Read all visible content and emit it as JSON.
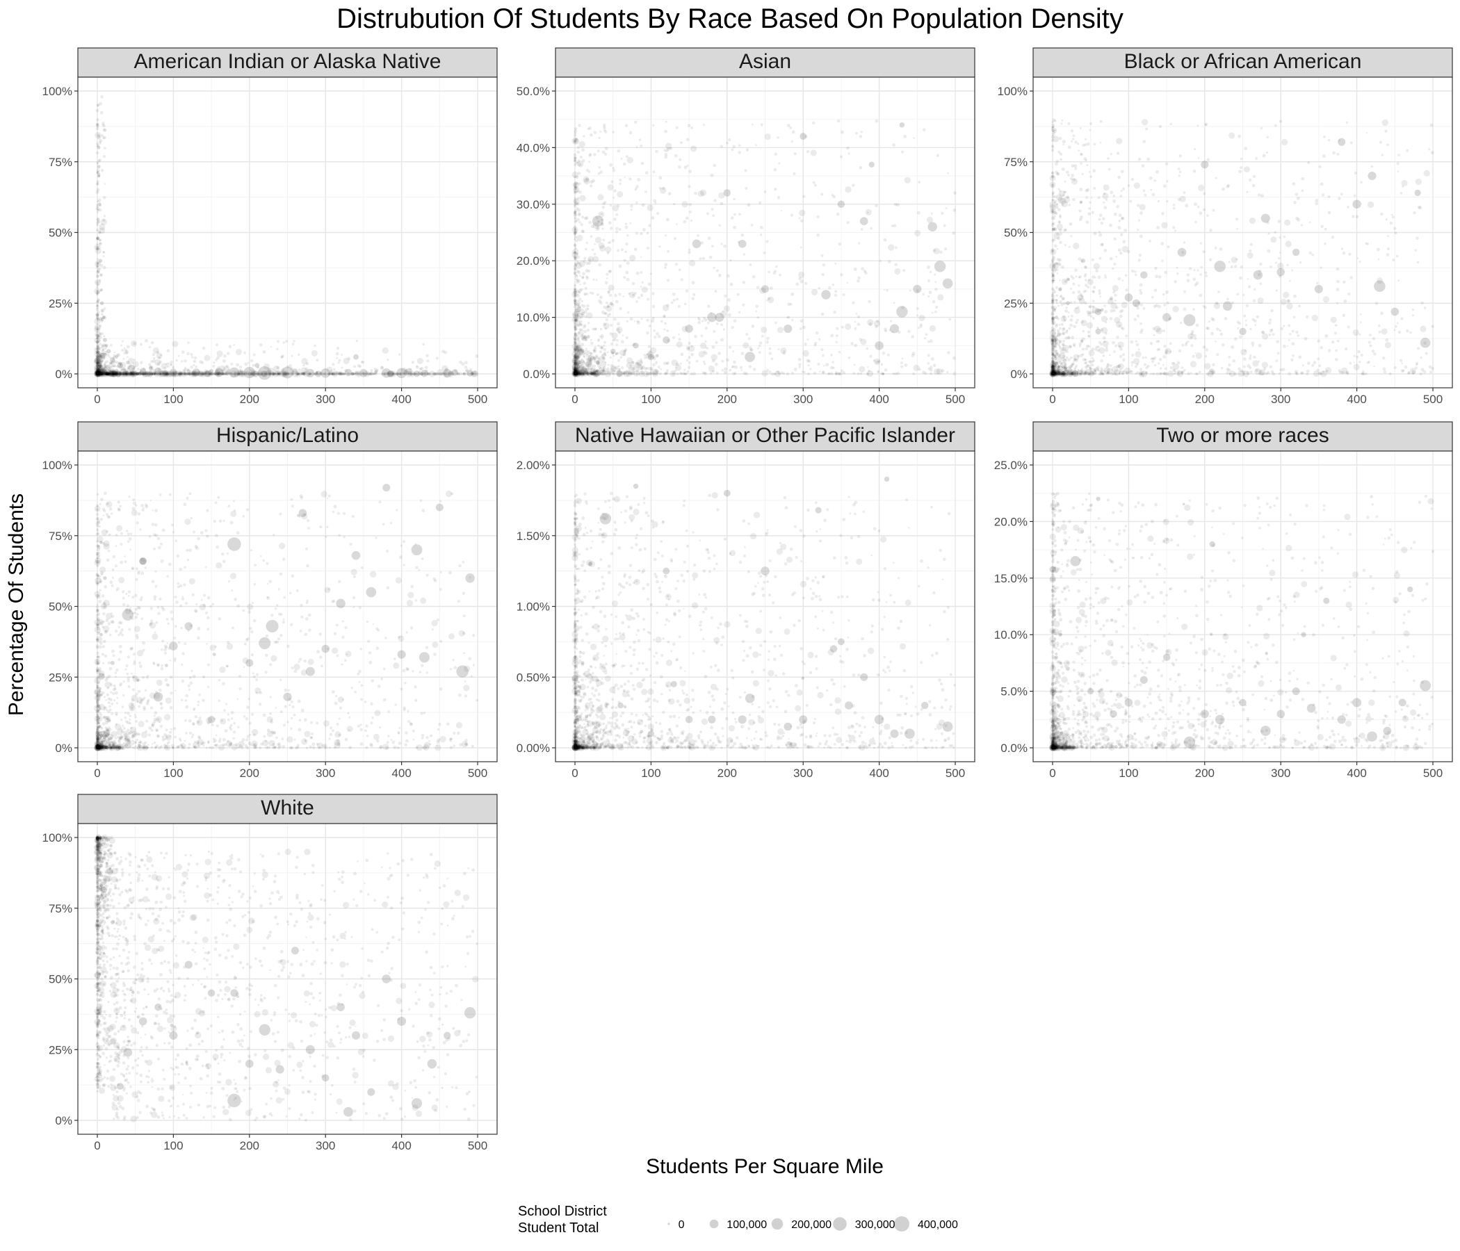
{
  "chart_data": {
    "type": "scatter",
    "title": "Distrubution Of Students By Race Based On Population Density",
    "xlabel": "Students Per Square Mile",
    "ylabel": "Percentage Of Students",
    "xlim": [
      0,
      500
    ],
    "x_ticks": [
      0,
      100,
      200,
      300,
      400,
      500
    ],
    "grid": true,
    "legend": {
      "title_lines": [
        "School District",
        "Student Total"
      ],
      "placement": "bottom",
      "sizes": [
        0,
        100000,
        200000,
        300000,
        400000
      ],
      "labels": [
        "0",
        "100,000",
        "200,000",
        "300,000",
        "400,000"
      ]
    },
    "panels": [
      {
        "name": "American Indian or Alaska Native",
        "ylim": [
          0,
          100
        ],
        "y_ticks": [
          0,
          25,
          50,
          75,
          100
        ],
        "y_tick_labels": [
          "0%",
          "25%",
          "50%",
          "75%",
          "100%"
        ],
        "pattern": "low",
        "x": [
          1,
          2,
          3,
          4,
          6,
          10,
          15,
          20,
          30,
          45,
          60,
          80,
          100,
          130,
          160,
          180,
          200,
          220,
          250,
          280,
          300,
          330,
          350,
          380,
          400,
          430,
          460,
          490,
          2,
          3,
          5,
          8,
          12,
          25,
          40,
          70,
          120,
          150,
          210,
          260,
          340,
          410,
          470
        ],
        "y": [
          95,
          80,
          60,
          40,
          25,
          12,
          8,
          5,
          3,
          2,
          1,
          1,
          0.5,
          0.5,
          0.5,
          0.5,
          0.5,
          0.3,
          0.5,
          0.3,
          0.3,
          0.5,
          0.3,
          0.3,
          0.3,
          0.2,
          0.2,
          0.2,
          70,
          50,
          35,
          20,
          10,
          6,
          4,
          2,
          1,
          1,
          3,
          1,
          6,
          1,
          0.5
        ],
        "sizes": [
          1000,
          2000,
          3000,
          5000,
          5000,
          8000,
          10000,
          20000,
          30000,
          50000,
          40000,
          60000,
          70000,
          80000,
          100000,
          150000,
          200000,
          300000,
          220000,
          90000,
          120000,
          60000,
          80000,
          120000,
          150000,
          60000,
          100000,
          40000,
          800,
          900,
          1200,
          1500,
          2000,
          3000,
          4000,
          5000,
          6000,
          8000,
          15000,
          20000,
          25000,
          30000,
          40000
        ]
      },
      {
        "name": "Asian",
        "ylim": [
          0,
          50
        ],
        "y_ticks": [
          0,
          10,
          20,
          30,
          40,
          50
        ],
        "y_tick_labels": [
          "0.0%",
          "10.0%",
          "20.0%",
          "30.0%",
          "40.0%",
          "50.0%"
        ],
        "pattern": "spread",
        "x": [
          2,
          5,
          10,
          20,
          30,
          50,
          80,
          100,
          120,
          150,
          160,
          180,
          200,
          220,
          230,
          250,
          280,
          300,
          330,
          350,
          380,
          400,
          420,
          430,
          450,
          480,
          490,
          30,
          190,
          390,
          430,
          470
        ],
        "y": [
          1,
          2,
          1,
          3,
          2,
          4,
          5,
          3,
          6,
          8,
          23,
          10,
          32,
          23,
          3,
          15,
          8,
          42,
          14,
          30,
          27,
          5,
          8,
          11,
          15,
          19,
          16,
          27,
          10,
          37,
          44,
          26
        ],
        "sizes": [
          1000,
          3000,
          5000,
          8000,
          10000,
          20000,
          30000,
          40000,
          60000,
          80000,
          100000,
          120000,
          60000,
          80000,
          150000,
          70000,
          90000,
          50000,
          120000,
          60000,
          80000,
          100000,
          110000,
          200000,
          90000,
          200000,
          150000,
          180000,
          110000,
          30000,
          20000,
          120000
        ]
      },
      {
        "name": "Black or African American",
        "ylim": [
          0,
          100
        ],
        "y_ticks": [
          0,
          25,
          50,
          75,
          100
        ],
        "y_tick_labels": [
          "0%",
          "25%",
          "50%",
          "75%",
          "100%"
        ],
        "pattern": "spread",
        "x": [
          1,
          3,
          5,
          10,
          20,
          40,
          60,
          100,
          120,
          150,
          170,
          180,
          200,
          220,
          230,
          250,
          280,
          300,
          350,
          380,
          400,
          420,
          430,
          450,
          480,
          490,
          60,
          110,
          270,
          320
        ],
        "y": [
          2,
          10,
          20,
          30,
          25,
          40,
          15,
          27,
          35,
          20,
          43,
          19,
          74,
          38,
          24,
          15,
          55,
          36,
          30,
          82,
          60,
          70,
          31,
          22,
          64,
          11,
          22,
          25,
          35,
          43
        ],
        "sizes": [
          1000,
          2000,
          3000,
          5000,
          8000,
          10000,
          30000,
          80000,
          60000,
          90000,
          100000,
          220000,
          70000,
          200000,
          120000,
          60000,
          110000,
          80000,
          90000,
          70000,
          100000,
          90000,
          200000,
          80000,
          40000,
          150000,
          50000,
          70000,
          120000,
          60000
        ]
      },
      {
        "name": "Hispanic/Latino",
        "ylim": [
          0,
          100
        ],
        "y_ticks": [
          0,
          25,
          50,
          75,
          100
        ],
        "y_tick_labels": [
          "0%",
          "25%",
          "50%",
          "75%",
          "100%"
        ],
        "pattern": "spread",
        "x": [
          1,
          3,
          5,
          10,
          20,
          40,
          60,
          80,
          100,
          120,
          150,
          180,
          200,
          220,
          230,
          250,
          280,
          300,
          320,
          340,
          360,
          380,
          400,
          420,
          430,
          450,
          480,
          490,
          60,
          270
        ],
        "y": [
          5,
          20,
          40,
          60,
          30,
          47,
          66,
          18,
          36,
          43,
          10,
          72,
          30,
          37,
          43,
          18,
          27,
          35,
          51,
          68,
          55,
          92,
          33,
          70,
          32,
          85,
          27,
          60,
          66,
          83
        ],
        "sizes": [
          1000,
          2000,
          3000,
          5000,
          8000,
          200000,
          60000,
          120000,
          100000,
          80000,
          60000,
          300000,
          70000,
          220000,
          250000,
          90000,
          110000,
          80000,
          120000,
          100000,
          150000,
          70000,
          90000,
          180000,
          160000,
          70000,
          230000,
          120000,
          60000,
          80000
        ]
      },
      {
        "name": "Native Hawaiian or Other Pacific Islander",
        "ylim": [
          0,
          2
        ],
        "y_ticks": [
          0,
          0.5,
          1,
          1.5,
          2
        ],
        "y_tick_labels": [
          "0.00%",
          "0.50%",
          "1.00%",
          "1.50%",
          "2.00%"
        ],
        "pattern": "spread",
        "x": [
          1,
          3,
          5,
          10,
          20,
          40,
          60,
          80,
          100,
          120,
          150,
          180,
          200,
          230,
          250,
          280,
          300,
          320,
          340,
          360,
          380,
          400,
          420,
          440,
          460,
          490,
          130,
          220,
          350,
          410
        ],
        "y": [
          0.05,
          0.2,
          0.4,
          0.6,
          1.3,
          1.62,
          0.3,
          1.85,
          0.1,
          1.25,
          0.2,
          0.2,
          1.8,
          0.35,
          1.25,
          0.15,
          0.2,
          1.68,
          0.7,
          0.3,
          0.5,
          0.2,
          0.1,
          0.1,
          0.3,
          0.15,
          0.45,
          0.2,
          0.75,
          1.9
        ],
        "sizes": [
          1000,
          2000,
          3000,
          5000,
          10000,
          200000,
          30000,
          20000,
          40000,
          50000,
          60000,
          70000,
          50000,
          120000,
          100000,
          80000,
          90000,
          40000,
          60000,
          80000,
          70000,
          120000,
          90000,
          150000,
          60000,
          150000,
          40000,
          90000,
          50000,
          20000
        ]
      },
      {
        "name": "Two or more races",
        "ylim": [
          0,
          25
        ],
        "y_ticks": [
          0,
          5,
          10,
          15,
          20,
          25
        ],
        "y_tick_labels": [
          "0.0%",
          "5.0%",
          "10.0%",
          "15.0%",
          "20.0%",
          "25.0%"
        ],
        "pattern": "spread",
        "x": [
          1,
          3,
          5,
          10,
          20,
          30,
          50,
          80,
          100,
          120,
          150,
          180,
          200,
          220,
          250,
          280,
          300,
          320,
          340,
          360,
          380,
          400,
          420,
          440,
          460,
          490,
          210,
          330,
          470,
          60
        ],
        "y": [
          2,
          5,
          8,
          10,
          7,
          16.5,
          5,
          3,
          4,
          6,
          8,
          0.5,
          3,
          2.5,
          4,
          1.5,
          3,
          5,
          3.5,
          13,
          2.5,
          4,
          1,
          1.5,
          4,
          5.5,
          18,
          10,
          14,
          22
        ],
        "sizes": [
          1000,
          2000,
          3000,
          5000,
          8000,
          150000,
          40000,
          60000,
          80000,
          70000,
          60000,
          200000,
          90000,
          120000,
          60000,
          150000,
          80000,
          70000,
          100000,
          40000,
          90000,
          110000,
          150000,
          80000,
          70000,
          180000,
          30000,
          20000,
          30000,
          10000
        ]
      },
      {
        "name": "White",
        "ylim": [
          0,
          100
        ],
        "y_ticks": [
          0,
          25,
          50,
          75,
          100
        ],
        "y_tick_labels": [
          "0%",
          "25%",
          "50%",
          "75%",
          "100%"
        ],
        "pattern": "white",
        "x": [
          1,
          3,
          5,
          10,
          20,
          40,
          60,
          80,
          100,
          120,
          150,
          180,
          200,
          220,
          240,
          260,
          280,
          300,
          320,
          340,
          360,
          380,
          400,
          420,
          440,
          460,
          490,
          30,
          180,
          330
        ],
        "y": [
          98,
          95,
          90,
          85,
          70,
          24,
          35,
          40,
          30,
          55,
          45,
          7,
          20,
          32,
          18,
          60,
          25,
          15,
          40,
          30,
          10,
          50,
          35,
          6,
          20,
          30,
          38,
          12,
          45,
          3
        ],
        "sizes": [
          1000,
          2000,
          3000,
          5000,
          8000,
          100000,
          80000,
          60000,
          90000,
          70000,
          60000,
          300000,
          80000,
          200000,
          90000,
          70000,
          110000,
          60000,
          80000,
          90000,
          70000,
          100000,
          110000,
          160000,
          120000,
          60000,
          200000,
          50000,
          70000,
          130000
        ]
      }
    ]
  }
}
